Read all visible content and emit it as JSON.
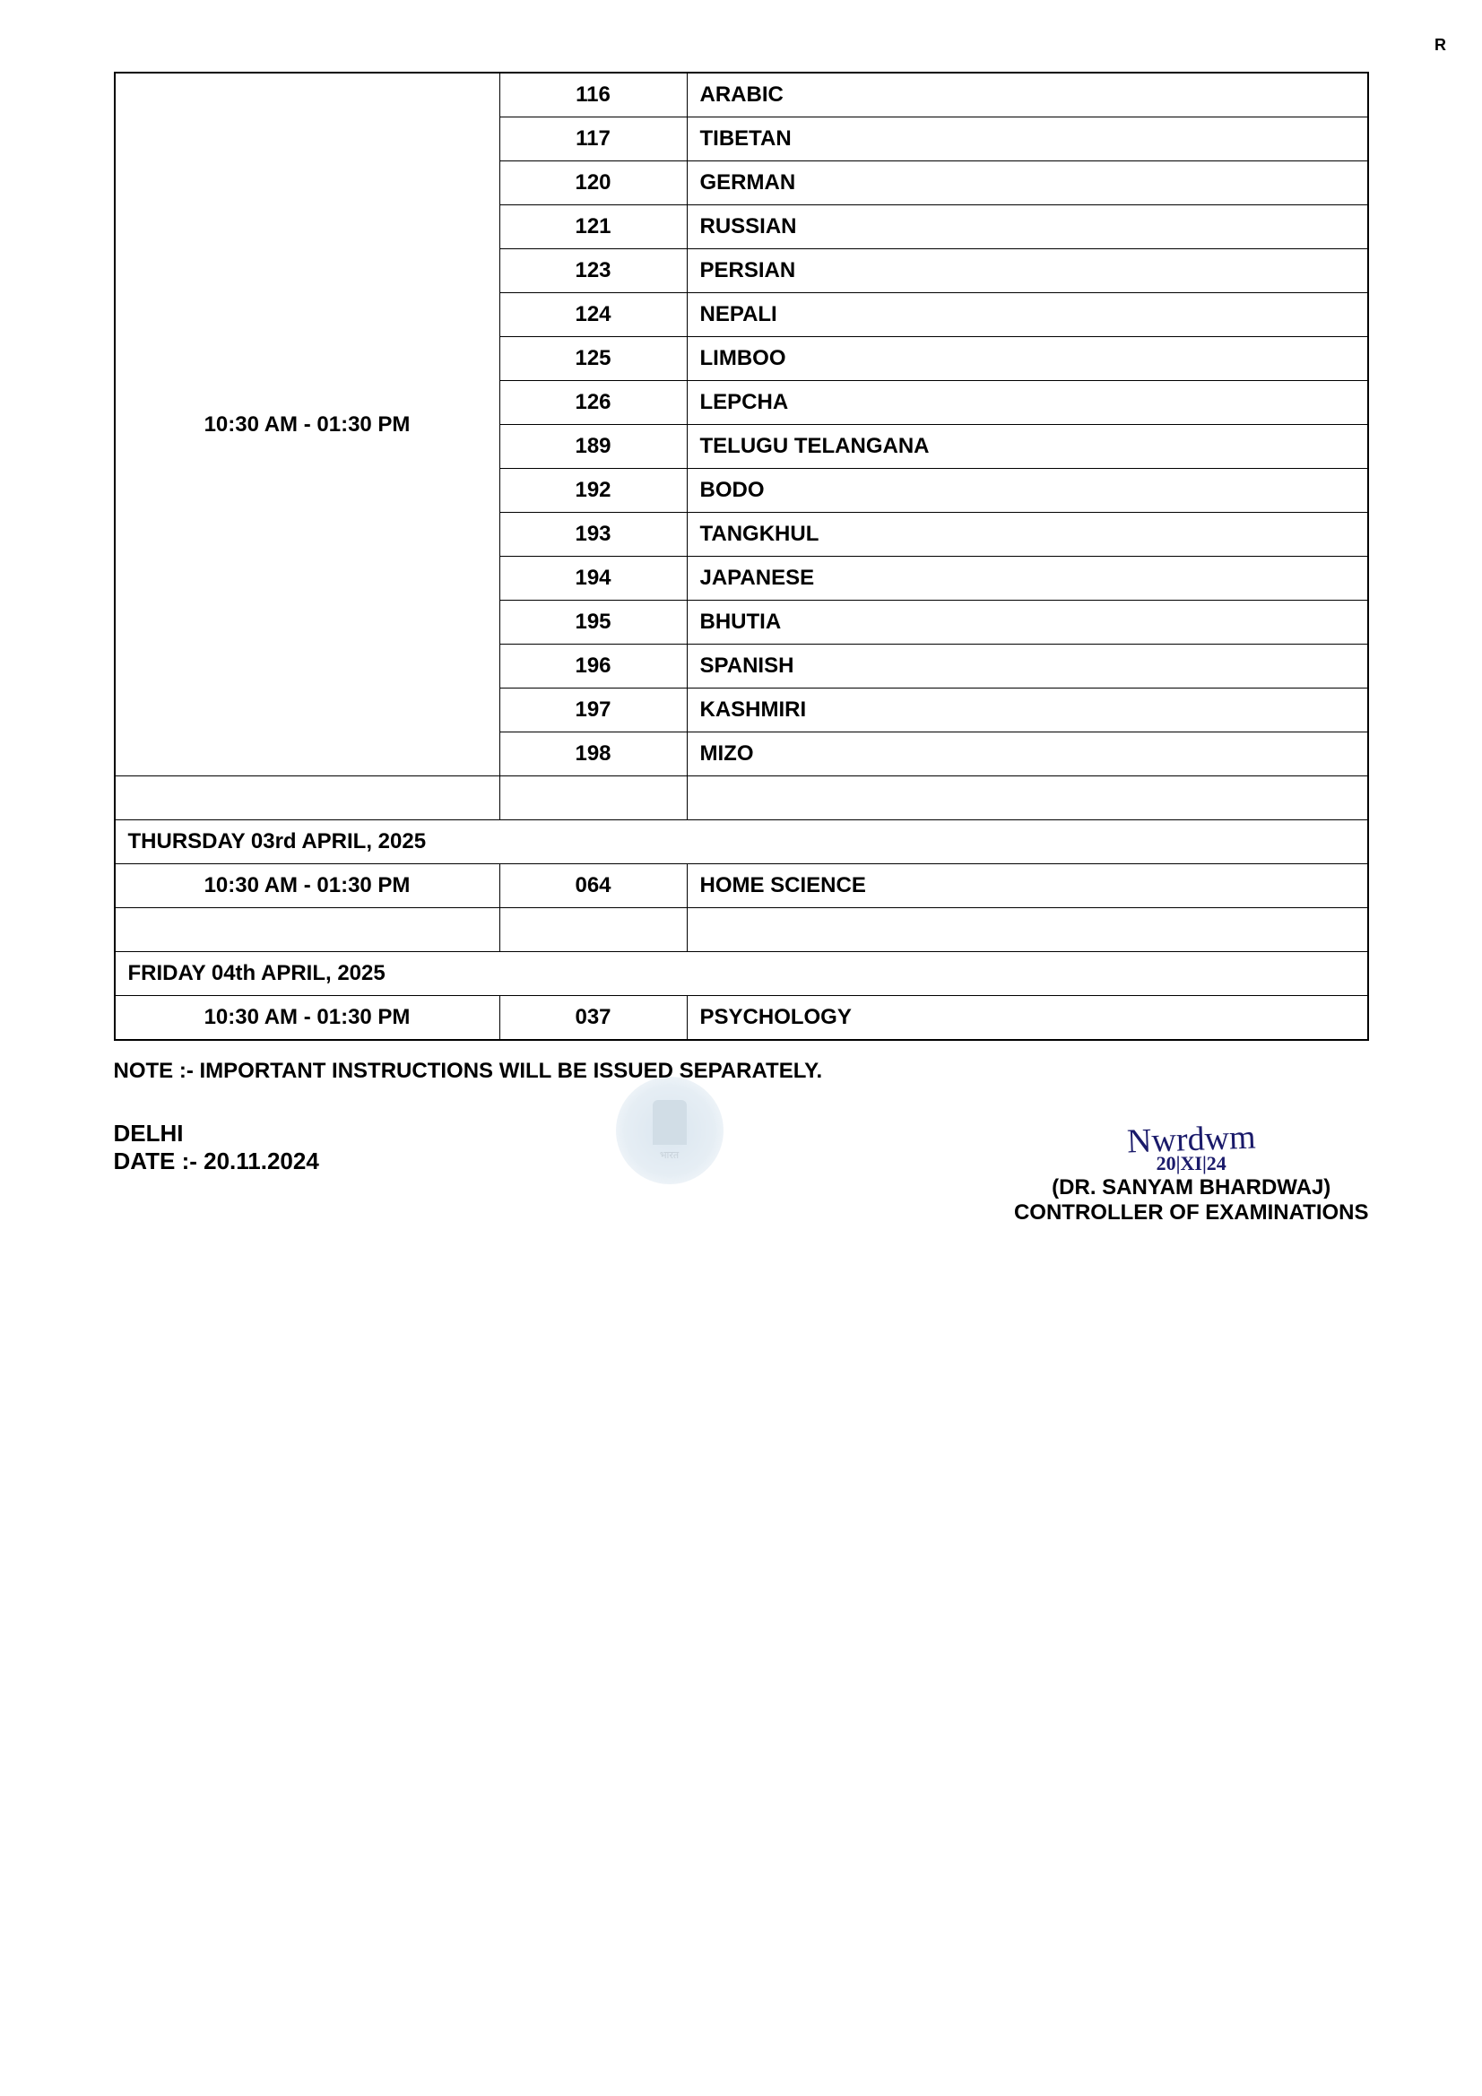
{
  "corner_mark": "R",
  "schedule": {
    "session1": {
      "time": "10:30 AM - 01:30 PM",
      "rows": [
        {
          "code": "116",
          "subject": "ARABIC"
        },
        {
          "code": "117",
          "subject": "TIBETAN"
        },
        {
          "code": "120",
          "subject": "GERMAN"
        },
        {
          "code": "121",
          "subject": "RUSSIAN"
        },
        {
          "code": "123",
          "subject": "PERSIAN"
        },
        {
          "code": "124",
          "subject": "NEPALI"
        },
        {
          "code": "125",
          "subject": "LIMBOO"
        },
        {
          "code": "126",
          "subject": "LEPCHA"
        },
        {
          "code": "189",
          "subject": "TELUGU TELANGANA"
        },
        {
          "code": "192",
          "subject": "BODO"
        },
        {
          "code": "193",
          "subject": "TANGKHUL"
        },
        {
          "code": "194",
          "subject": "JAPANESE"
        },
        {
          "code": "195",
          "subject": "BHUTIA"
        },
        {
          "code": "196",
          "subject": "SPANISH"
        },
        {
          "code": "197",
          "subject": "KASHMIRI"
        },
        {
          "code": "198",
          "subject": "MIZO"
        }
      ]
    },
    "date2": "THURSDAY 03rd APRIL, 2025",
    "session2": {
      "time": "10:30 AM - 01:30 PM",
      "rows": [
        {
          "code": "064",
          "subject": "HOME SCIENCE"
        }
      ]
    },
    "date3": "FRIDAY 04th APRIL, 2025",
    "session3": {
      "time": "10:30 AM - 01:30 PM",
      "rows": [
        {
          "code": "037",
          "subject": "PSYCHOLOGY"
        }
      ]
    }
  },
  "note": "NOTE :- IMPORTANT INSTRUCTIONS WILL BE ISSUED SEPARATELY.",
  "footer": {
    "place": "DELHI",
    "date_label": "DATE :-  20.11.2024",
    "signatory_name": "(DR. SANYAM BHARDWAJ)",
    "signatory_title": "CONTROLLER OF EXAMINATIONS",
    "signature_scribble": "Nwrdwm",
    "signature_date": "20|XI|24"
  }
}
